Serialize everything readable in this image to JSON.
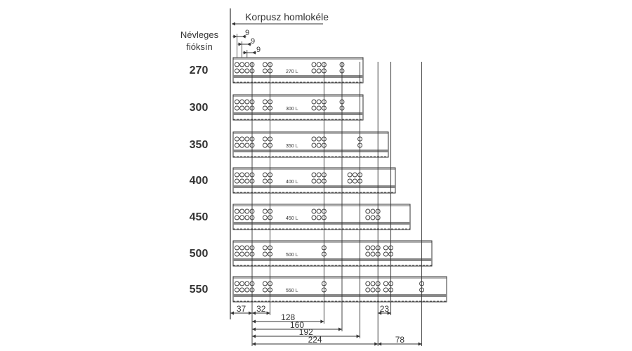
{
  "header": {
    "front_label": "Korpusz homlokéle",
    "nominal_label_line1": "Névleges",
    "nominal_label_line2": "fióksín",
    "hole_spacing_labels": [
      "9",
      "9",
      "9"
    ]
  },
  "rows": [
    {
      "size": "270",
      "rail_label": "270 L",
      "holes_mm": [
        -27,
        -18,
        -9,
        0,
        23,
        32,
        110,
        119,
        128,
        160
      ]
    },
    {
      "size": "300",
      "rail_label": "300 L",
      "holes_mm": [
        -27,
        -18,
        -9,
        0,
        23,
        32,
        110,
        119,
        128,
        160
      ]
    },
    {
      "size": "350",
      "rail_label": "350 L",
      "holes_mm": [
        -27,
        -18,
        -9,
        0,
        23,
        32,
        110,
        119,
        128,
        192
      ]
    },
    {
      "size": "400",
      "rail_label": "400 L",
      "holes_mm": [
        -27,
        -18,
        -9,
        0,
        23,
        32,
        110,
        119,
        128,
        174,
        183,
        192
      ]
    },
    {
      "size": "450",
      "rail_label": "450 L",
      "holes_mm": [
        -27,
        -18,
        -9,
        0,
        23,
        32,
        110,
        119,
        128,
        206,
        215,
        224
      ]
    },
    {
      "size": "500",
      "rail_label": "500 L",
      "holes_mm": [
        -27,
        -18,
        -9,
        0,
        23,
        32,
        128,
        206,
        215,
        224,
        238,
        247
      ]
    },
    {
      "size": "550",
      "rail_label": "550 L",
      "holes_mm": [
        -27,
        -18,
        -9,
        0,
        23,
        32,
        128,
        206,
        215,
        224,
        238,
        247,
        302
      ]
    }
  ],
  "dimensions": [
    {
      "label": "37",
      "from_mm": -37,
      "to_mm": 0,
      "level": 0
    },
    {
      "label": "32",
      "from_mm": 0,
      "to_mm": 32,
      "level": 0
    },
    {
      "label": "23",
      "from_mm": 224,
      "to_mm": 247,
      "level": 0
    },
    {
      "label": "128",
      "from_mm": 0,
      "to_mm": 128,
      "level": 1
    },
    {
      "label": "160",
      "from_mm": 0,
      "to_mm": 160,
      "level": 2
    },
    {
      "label": "192",
      "from_mm": 0,
      "to_mm": 192,
      "level": 3
    },
    {
      "label": "224",
      "from_mm": 0,
      "to_mm": 224,
      "level": 4
    },
    {
      "label": "78",
      "from_mm": 224,
      "to_mm": 302,
      "level": 4
    }
  ],
  "colors": {
    "line": "#333333",
    "band": "#888888"
  }
}
